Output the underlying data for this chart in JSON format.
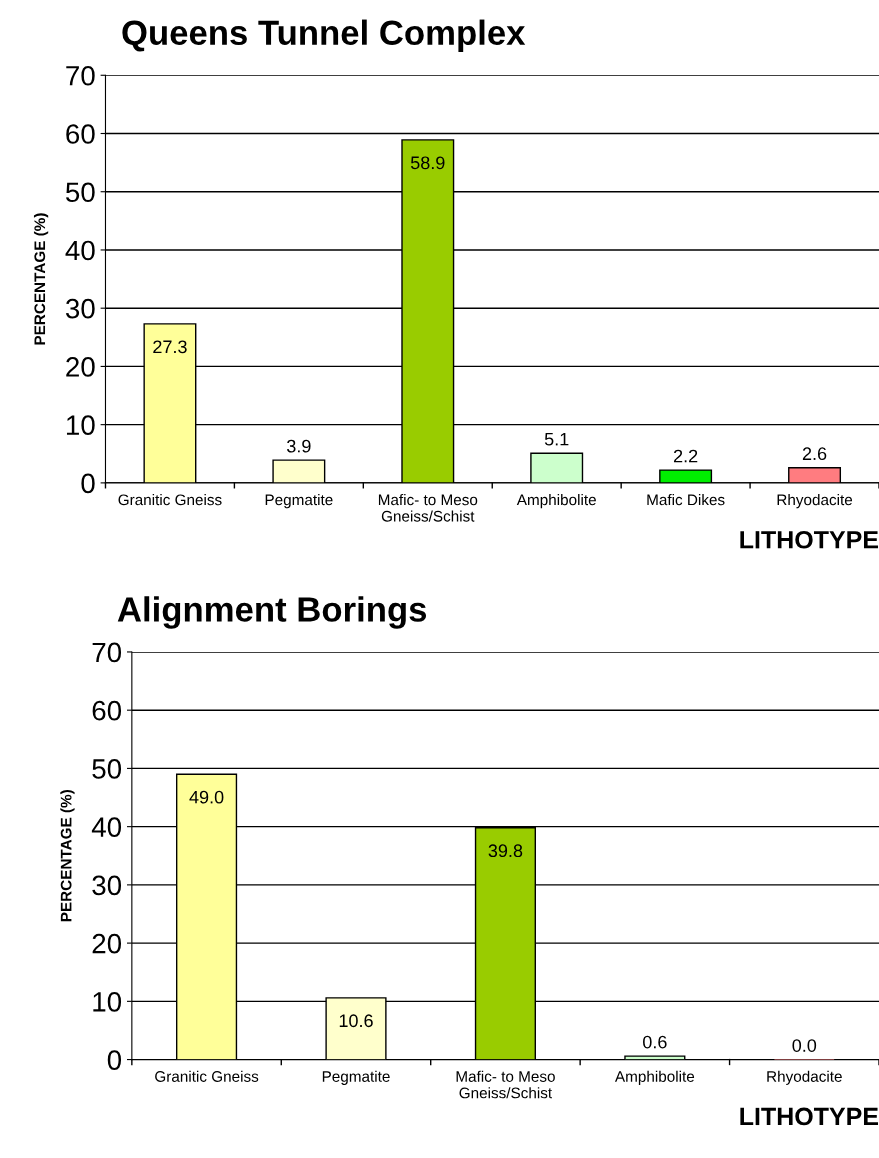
{
  "chart_data": [
    {
      "type": "bar",
      "title": "Queens Tunnel Complex",
      "xlabel": "LITHOTYPE",
      "ylabel": "PERCENTAGE (%)",
      "categories": [
        "Granitic Gneiss",
        "Pegmatite",
        "Mafic- to Meso\nGneiss/Schist",
        "Amphibolite",
        "Mafic Dikes",
        "Rhyodacite"
      ],
      "values": [
        27.3,
        3.9,
        58.9,
        5.1,
        2.2,
        2.6
      ],
      "colors": [
        "#ffff99",
        "#ffffcc",
        "#99cc00",
        "#ccffcc",
        "#00ee00",
        "#ff7c80"
      ],
      "ylim": [
        0,
        70
      ],
      "yticks": [
        0,
        10,
        20,
        30,
        40,
        50,
        60,
        70
      ],
      "grid": "y",
      "data_labels": true
    },
    {
      "type": "bar",
      "title": "Alignment Borings",
      "xlabel": "LITHOTYPE",
      "ylabel": "PERCENTAGE (%)",
      "categories": [
        "Granitic Gneiss",
        "Pegmatite",
        "Mafic- to Meso\nGneiss/Schist",
        "Amphibolite",
        "Rhyodacite"
      ],
      "values": [
        49.0,
        10.6,
        39.8,
        0.6,
        0.0
      ],
      "value_labels": [
        "49.0",
        "10.6",
        "39.8",
        "0.6",
        "0.0"
      ],
      "colors": [
        "#ffff99",
        "#ffffcc",
        "#99cc00",
        "#ccffcc",
        "#ff7c80"
      ],
      "ylim": [
        0,
        70
      ],
      "yticks": [
        0,
        10,
        20,
        30,
        40,
        50,
        60,
        70
      ],
      "grid": "y"
    }
  ]
}
